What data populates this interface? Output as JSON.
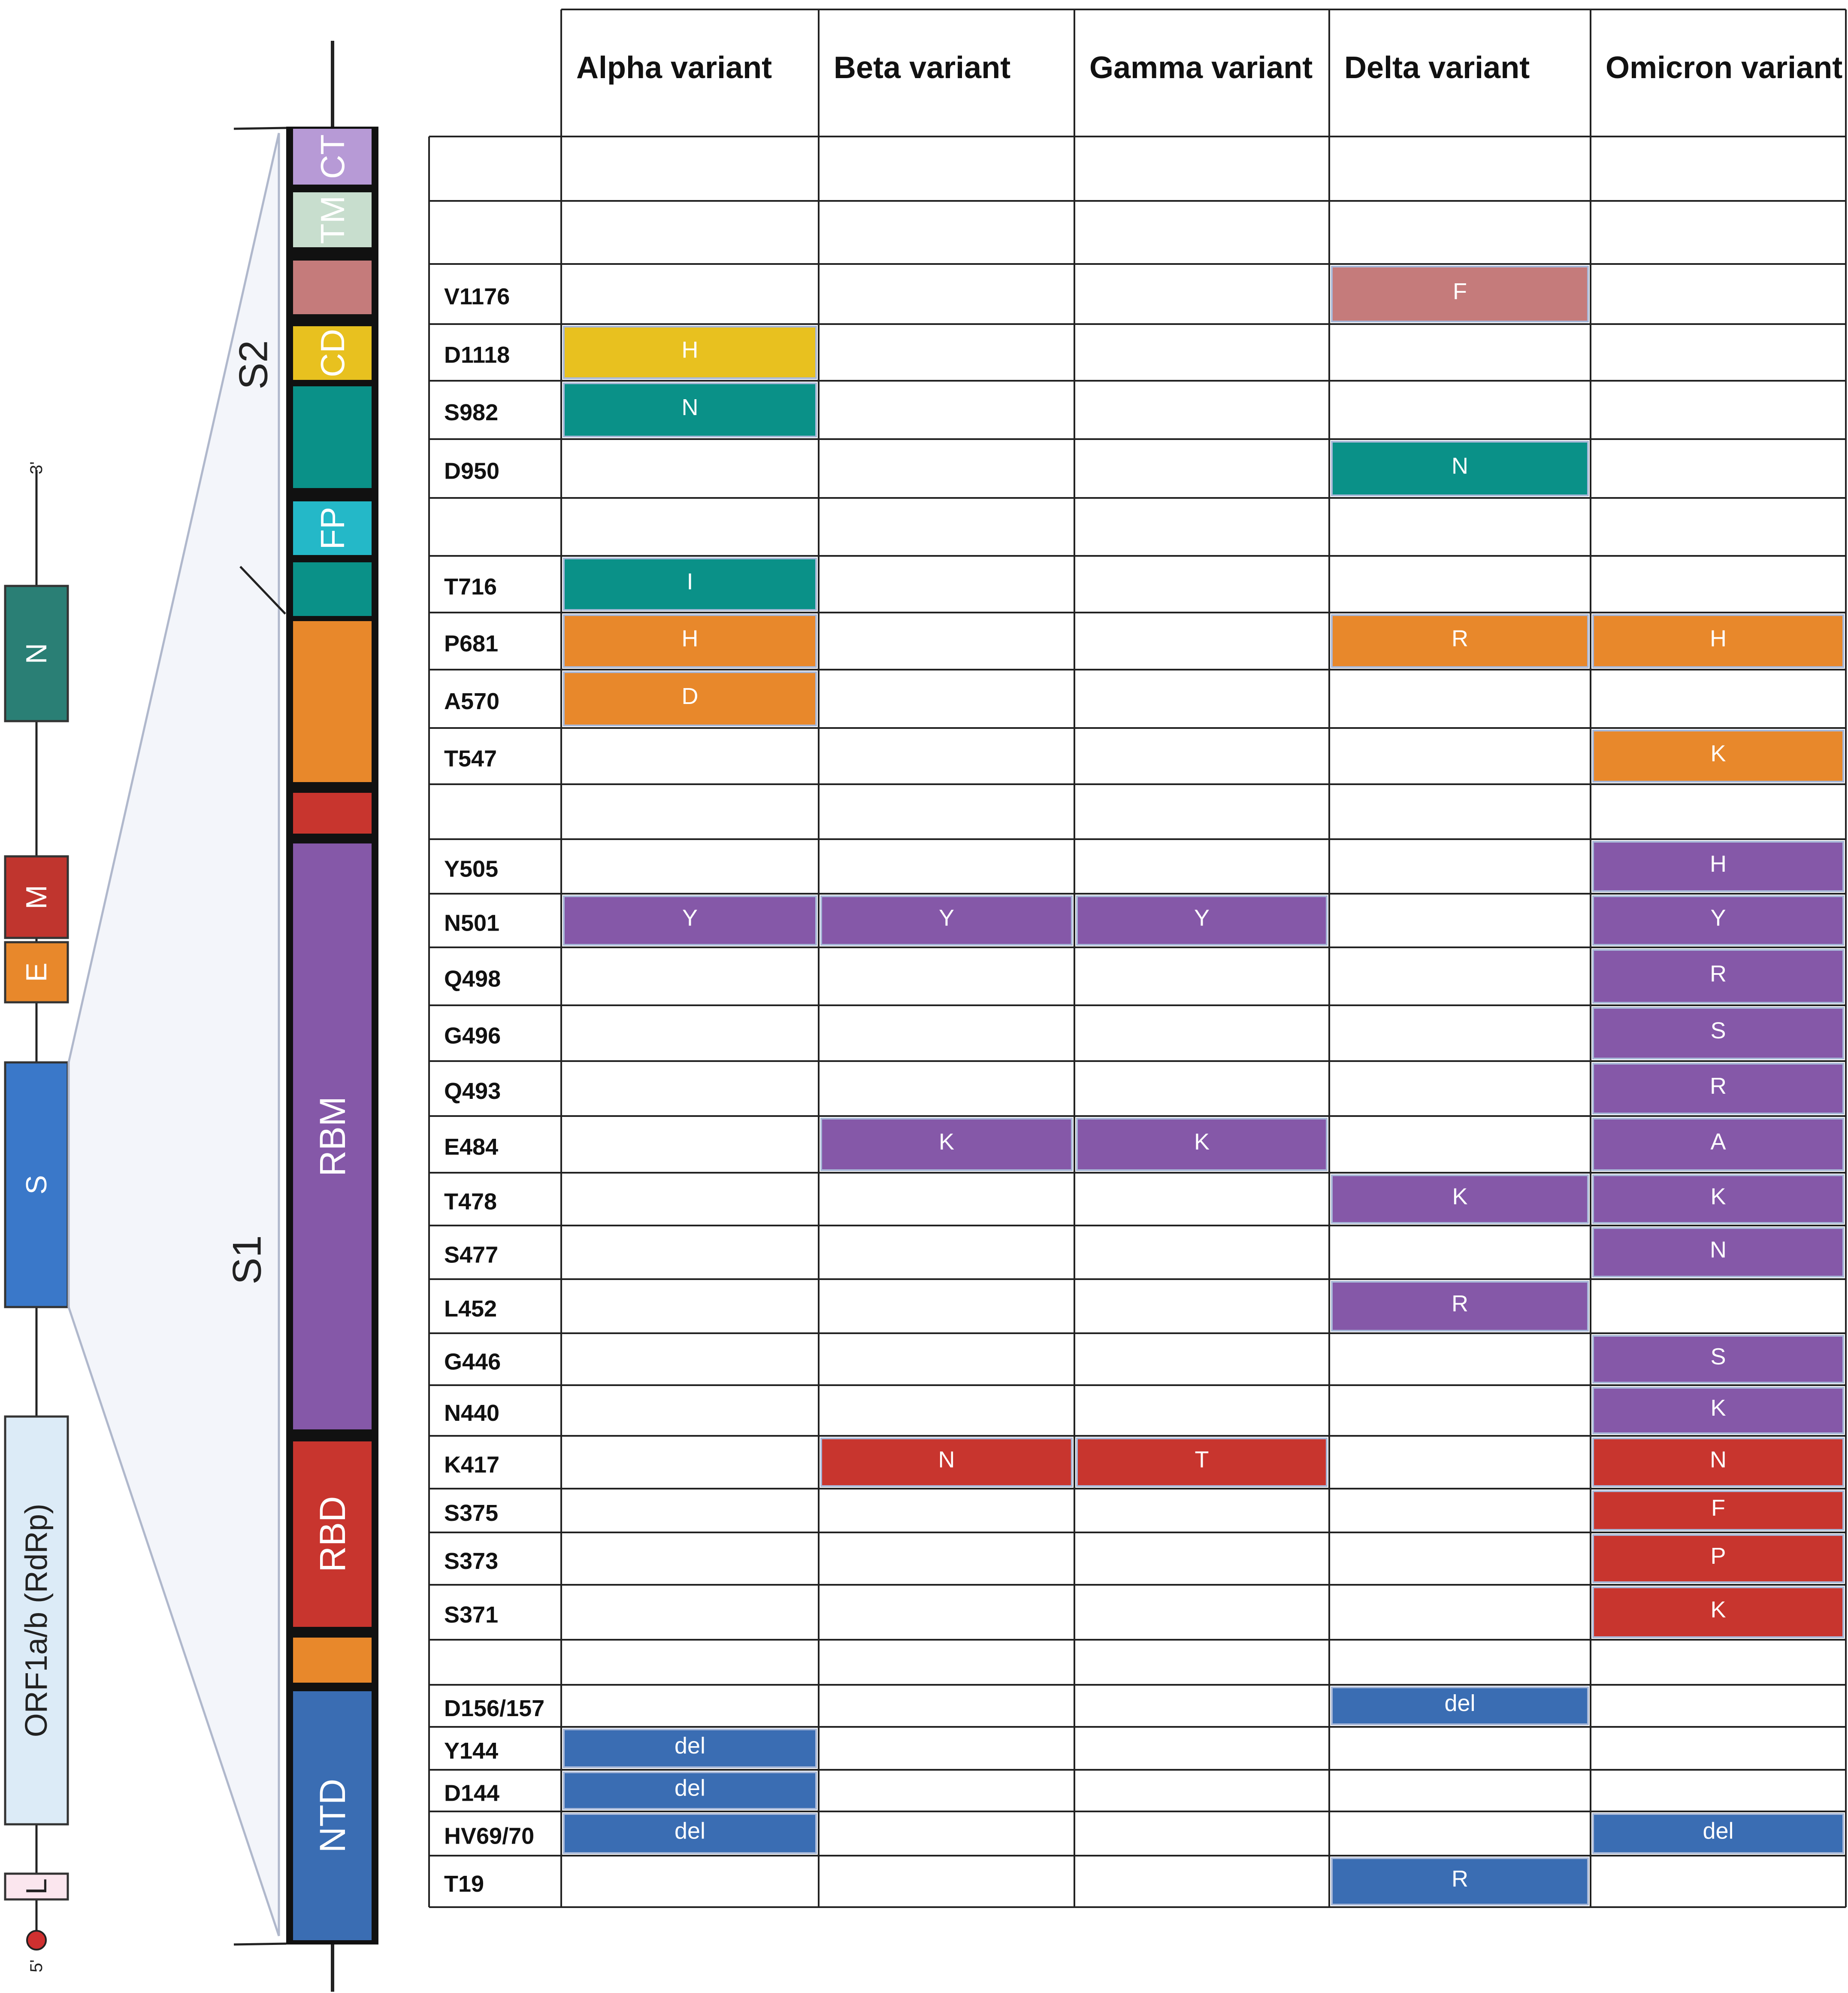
{
  "genome": {
    "five_prime": "5'",
    "three_prime": "3'",
    "genes": [
      {
        "label": "L",
        "color": "#fbe6ee",
        "text_color": "#222222"
      },
      {
        "label": "ORF1a/b  (RdRp)",
        "color": "#dcebf7",
        "text_color": "#222222"
      },
      {
        "label": "S",
        "color": "#3a78c9",
        "text_color": "#ffffff"
      },
      {
        "label": "E",
        "color": "#e8882b",
        "text_color": "#ffffff"
      },
      {
        "label": "M",
        "color": "#c0352e",
        "text_color": "#ffffff"
      },
      {
        "label": "N",
        "color": "#2a7f75",
        "text_color": "#ffffff"
      }
    ]
  },
  "spike": {
    "subunits": [
      "S2",
      "S1"
    ],
    "domains": [
      {
        "label": "CT",
        "color": "#b79ad6"
      },
      {
        "label": "TM",
        "color": "#c8dece"
      },
      {
        "label": "",
        "color": "#c57b7b"
      },
      {
        "label": "CD",
        "color": "#e8c11f"
      },
      {
        "label": "",
        "color": "#0a9188"
      },
      {
        "label": "FP",
        "color": "#24b8c8"
      },
      {
        "label": "",
        "color": "#0a9188"
      },
      {
        "label": "",
        "color": "#e8882b"
      },
      {
        "label": "",
        "color": "#c8352e"
      },
      {
        "label": "RBM",
        "color": "#8558a8"
      },
      {
        "label": "RBD",
        "color": "#c8352e"
      },
      {
        "label": "",
        "color": "#e8882b"
      },
      {
        "label": "NTD",
        "color": "#3a6db3"
      }
    ]
  },
  "table": {
    "columns": [
      "Alpha variant",
      "Beta variant",
      "Gamma variant",
      "Delta variant",
      "Omicron variant"
    ],
    "rows": [
      {
        "site": "",
        "cells": [
          null,
          null,
          null,
          null,
          null
        ]
      },
      {
        "site": "",
        "cells": [
          null,
          null,
          null,
          null,
          null
        ]
      },
      {
        "site": "V1176",
        "cells": [
          null,
          null,
          null,
          "F",
          null
        ]
      },
      {
        "site": "D1118",
        "cells": [
          "H",
          null,
          null,
          null,
          null
        ]
      },
      {
        "site": "S982",
        "cells": [
          "N",
          null,
          null,
          null,
          null
        ]
      },
      {
        "site": "D950",
        "cells": [
          null,
          null,
          null,
          "N",
          null
        ]
      },
      {
        "site": "",
        "cells": [
          null,
          null,
          null,
          null,
          null
        ]
      },
      {
        "site": "T716",
        "cells": [
          "I",
          null,
          null,
          null,
          null
        ]
      },
      {
        "site": "P681",
        "cells": [
          "H",
          null,
          null,
          "R",
          "H"
        ]
      },
      {
        "site": "A570",
        "cells": [
          "D",
          null,
          null,
          null,
          null
        ]
      },
      {
        "site": "T547",
        "cells": [
          null,
          null,
          null,
          null,
          "K"
        ]
      },
      {
        "site": "",
        "cells": [
          null,
          null,
          null,
          null,
          null
        ]
      },
      {
        "site": "Y505",
        "cells": [
          null,
          null,
          null,
          null,
          "H"
        ]
      },
      {
        "site": "N501",
        "cells": [
          "Y",
          "Y",
          "Y",
          null,
          "Y"
        ]
      },
      {
        "site": "Q498",
        "cells": [
          null,
          null,
          null,
          null,
          "R"
        ]
      },
      {
        "site": "G496",
        "cells": [
          null,
          null,
          null,
          null,
          "S"
        ]
      },
      {
        "site": "Q493",
        "cells": [
          null,
          null,
          null,
          null,
          "R"
        ]
      },
      {
        "site": "E484",
        "cells": [
          null,
          "K",
          "K",
          null,
          "A"
        ]
      },
      {
        "site": "T478",
        "cells": [
          null,
          null,
          null,
          "K",
          "K"
        ]
      },
      {
        "site": "S477",
        "cells": [
          null,
          null,
          null,
          null,
          "N"
        ]
      },
      {
        "site": "L452",
        "cells": [
          null,
          null,
          null,
          "R",
          null
        ]
      },
      {
        "site": "G446",
        "cells": [
          null,
          null,
          null,
          null,
          "S"
        ]
      },
      {
        "site": "N440",
        "cells": [
          null,
          null,
          null,
          null,
          "K"
        ]
      },
      {
        "site": "K417",
        "cells": [
          null,
          "N",
          "T",
          null,
          "N"
        ]
      },
      {
        "site": "S375",
        "cells": [
          null,
          null,
          null,
          null,
          "F"
        ]
      },
      {
        "site": "S373",
        "cells": [
          null,
          null,
          null,
          null,
          "P"
        ]
      },
      {
        "site": "S371",
        "cells": [
          null,
          null,
          null,
          null,
          "K"
        ]
      },
      {
        "site": "",
        "cells": [
          null,
          null,
          null,
          null,
          null
        ]
      },
      {
        "site": "D156/157",
        "cells": [
          null,
          null,
          null,
          "del",
          null
        ]
      },
      {
        "site": "Y144",
        "cells": [
          "del",
          null,
          null,
          null,
          null
        ]
      },
      {
        "site": "D144",
        "cells": [
          "del",
          null,
          null,
          null,
          null
        ]
      },
      {
        "site": "HV69/70",
        "cells": [
          "del",
          null,
          null,
          null,
          "del"
        ]
      },
      {
        "site": "T19",
        "cells": [
          null,
          null,
          null,
          "R",
          null
        ]
      }
    ],
    "row_colors": [
      "",
      "",
      "#c57b7b",
      "#e8c11f",
      "#0a9188",
      "#0a9188",
      "",
      "#0a9188",
      "#e8882b",
      "#e8882b",
      "#e8882b",
      "",
      "#8558a8",
      "#8558a8",
      "#8558a8",
      "#8558a8",
      "#8558a8",
      "#8558a8",
      "#8558a8",
      "#8558a8",
      "#8558a8",
      "#8558a8",
      "#8558a8",
      "#c8352e",
      "#c8352e",
      "#c8352e",
      "#c8352e",
      "",
      "#3a6db3",
      "#3a6db3",
      "#3a6db3",
      "#3a6db3",
      "#3a6db3"
    ]
  }
}
